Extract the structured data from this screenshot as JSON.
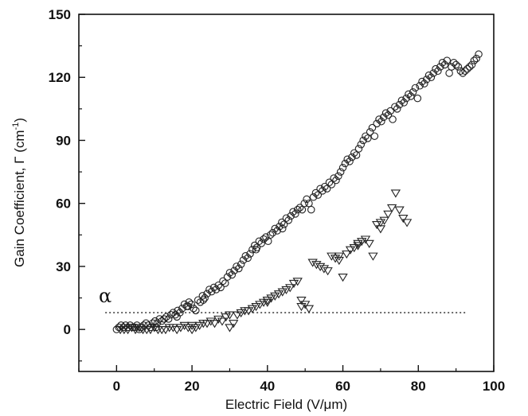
{
  "chart_data": {
    "type": "scatter",
    "xlabel": "Electric Field (V/μm)",
    "ylabel_main": "Gain Coefficient, Γ (cm",
    "ylabel_sup": "-1",
    "ylabel_end": ")",
    "xlim": [
      -10,
      100
    ],
    "ylim": [
      -20,
      150
    ],
    "xticks": [
      0,
      20,
      40,
      60,
      80,
      100
    ],
    "yticks": [
      0,
      30,
      60,
      90,
      120,
      150
    ],
    "grid": false,
    "annotation": {
      "text": "α",
      "x": -3,
      "y": 13
    },
    "threshold_line": {
      "y": 8,
      "x_start": -3,
      "x_end": 93
    },
    "series": [
      {
        "marker": "circle",
        "points": [
          [
            0,
            0
          ],
          [
            0.6,
            1
          ],
          [
            1.2,
            2
          ],
          [
            1.8,
            1
          ],
          [
            2.4,
            2
          ],
          [
            3,
            1
          ],
          [
            3.6,
            2
          ],
          [
            4.2,
            1
          ],
          [
            4.8,
            1
          ],
          [
            5.4,
            2
          ],
          [
            6,
            0
          ],
          [
            6.6,
            1
          ],
          [
            7.2,
            2
          ],
          [
            7.8,
            3
          ],
          [
            8.4,
            2
          ],
          [
            9,
            1
          ],
          [
            9.6,
            3
          ],
          [
            10.2,
            4
          ],
          [
            10.8,
            3
          ],
          [
            11.4,
            5
          ],
          [
            12,
            4
          ],
          [
            12.6,
            5
          ],
          [
            13.2,
            6
          ],
          [
            13.8,
            5
          ],
          [
            14.4,
            7
          ],
          [
            15,
            8
          ],
          [
            15.6,
            7
          ],
          [
            16.2,
            9
          ],
          [
            16.8,
            8
          ],
          [
            17.4,
            10
          ],
          [
            18,
            12
          ],
          [
            18.6,
            11
          ],
          [
            19.2,
            13
          ],
          [
            19.8,
            12
          ],
          [
            20.4,
            10
          ],
          [
            21,
            9
          ],
          [
            21.6,
            14
          ],
          [
            22.2,
            13
          ],
          [
            22.8,
            16
          ],
          [
            23.4,
            15
          ],
          [
            24,
            17
          ],
          [
            24.6,
            19
          ],
          [
            25.2,
            18
          ],
          [
            25.8,
            20
          ],
          [
            26.4,
            19
          ],
          [
            27,
            21
          ],
          [
            27.6,
            20
          ],
          [
            28.2,
            23
          ],
          [
            28.8,
            22
          ],
          [
            29.4,
            25
          ],
          [
            30,
            27
          ],
          [
            30.6,
            26
          ],
          [
            31.2,
            28
          ],
          [
            31.8,
            30
          ],
          [
            32.4,
            29
          ],
          [
            33,
            31
          ],
          [
            33.6,
            33
          ],
          [
            34.2,
            35
          ],
          [
            34.8,
            34
          ],
          [
            35.4,
            36
          ],
          [
            36,
            38
          ],
          [
            36.6,
            40
          ],
          [
            37.2,
            39
          ],
          [
            37.8,
            42
          ],
          [
            38.4,
            41
          ],
          [
            39,
            43
          ],
          [
            39.6,
            44
          ],
          [
            40.2,
            42
          ],
          [
            40.8,
            45
          ],
          [
            41.4,
            46
          ],
          [
            42,
            48
          ],
          [
            42.6,
            47
          ],
          [
            43.2,
            49
          ],
          [
            43.8,
            51
          ],
          [
            44.4,
            50
          ],
          [
            45,
            53
          ],
          [
            45.6,
            52
          ],
          [
            46.2,
            54
          ],
          [
            46.8,
            56
          ],
          [
            47.4,
            55
          ],
          [
            48,
            57
          ],
          [
            48.6,
            58
          ],
          [
            49.2,
            57
          ],
          [
            49.8,
            60
          ],
          [
            50.4,
            62
          ],
          [
            51,
            60
          ],
          [
            51.6,
            57
          ],
          [
            52.2,
            63
          ],
          [
            52.8,
            65
          ],
          [
            53.4,
            64
          ],
          [
            54,
            67
          ],
          [
            54.6,
            66
          ],
          [
            55.2,
            68
          ],
          [
            55.8,
            67
          ],
          [
            56.4,
            70
          ],
          [
            57,
            69
          ],
          [
            57.6,
            72
          ],
          [
            58.2,
            71
          ],
          [
            58.8,
            73
          ],
          [
            59.4,
            75
          ],
          [
            60,
            77
          ],
          [
            60.6,
            79
          ],
          [
            61.2,
            81
          ],
          [
            61.8,
            80
          ],
          [
            62.4,
            82
          ],
          [
            63,
            84
          ],
          [
            63.6,
            83
          ],
          [
            64.2,
            86
          ],
          [
            64.8,
            88
          ],
          [
            65.4,
            90
          ],
          [
            66,
            92
          ],
          [
            66.6,
            91
          ],
          [
            67.2,
            94
          ],
          [
            67.8,
            96
          ],
          [
            68.4,
            92
          ],
          [
            69,
            98
          ],
          [
            69.6,
            100
          ],
          [
            70.2,
            99
          ],
          [
            70.8,
            101
          ],
          [
            71.4,
            103
          ],
          [
            72,
            102
          ],
          [
            72.6,
            104
          ],
          [
            73.2,
            100
          ],
          [
            73.8,
            106
          ],
          [
            74.4,
            105
          ],
          [
            75,
            107
          ],
          [
            75.6,
            109
          ],
          [
            76.2,
            108
          ],
          [
            76.8,
            110
          ],
          [
            77.4,
            112
          ],
          [
            78,
            111
          ],
          [
            78.6,
            113
          ],
          [
            79.2,
            115
          ],
          [
            79.8,
            110
          ],
          [
            80.4,
            116
          ],
          [
            81,
            118
          ],
          [
            81.6,
            117
          ],
          [
            82.2,
            119
          ],
          [
            82.8,
            121
          ],
          [
            83.4,
            120
          ],
          [
            84,
            122
          ],
          [
            84.6,
            124
          ],
          [
            85.2,
            123
          ],
          [
            85.8,
            125
          ],
          [
            86.4,
            127
          ],
          [
            87,
            126
          ],
          [
            87.6,
            128
          ],
          [
            88.2,
            122
          ],
          [
            88.8,
            125
          ],
          [
            89.4,
            127
          ],
          [
            90,
            126
          ],
          [
            90.6,
            125
          ],
          [
            91.2,
            123
          ],
          [
            91.8,
            122
          ],
          [
            92.4,
            123
          ],
          [
            93,
            124
          ],
          [
            93.6,
            125
          ],
          [
            94.2,
            126
          ],
          [
            94.8,
            128
          ],
          [
            95.4,
            129
          ],
          [
            96,
            131
          ],
          [
            10.5,
            1
          ],
          [
            16,
            6
          ],
          [
            19,
            11
          ],
          [
            23,
            14
          ],
          [
            37,
            38
          ],
          [
            44,
            48
          ]
        ]
      },
      {
        "marker": "triangle-down",
        "points": [
          [
            1,
            0
          ],
          [
            2,
            0
          ],
          [
            3,
            0
          ],
          [
            4,
            1
          ],
          [
            5,
            0
          ],
          [
            6,
            1
          ],
          [
            7,
            0
          ],
          [
            8,
            0
          ],
          [
            9,
            0
          ],
          [
            10,
            1
          ],
          [
            11,
            0
          ],
          [
            12,
            0
          ],
          [
            13,
            0
          ],
          [
            14,
            1
          ],
          [
            15,
            1
          ],
          [
            16,
            0
          ],
          [
            17,
            1
          ],
          [
            18,
            2
          ],
          [
            19,
            1
          ],
          [
            20,
            2
          ],
          [
            21,
            1
          ],
          [
            22,
            2
          ],
          [
            23,
            3
          ],
          [
            24,
            3
          ],
          [
            25,
            4
          ],
          [
            26,
            3
          ],
          [
            27,
            5
          ],
          [
            28,
            4
          ],
          [
            29,
            6
          ],
          [
            30,
            7
          ],
          [
            31,
            3
          ],
          [
            32,
            7
          ],
          [
            33,
            8
          ],
          [
            34,
            9
          ],
          [
            35,
            9
          ],
          [
            36,
            10
          ],
          [
            37,
            11
          ],
          [
            38,
            12
          ],
          [
            39,
            13
          ],
          [
            40,
            14
          ],
          [
            41,
            15
          ],
          [
            42,
            16
          ],
          [
            43,
            17
          ],
          [
            44,
            18
          ],
          [
            45,
            19
          ],
          [
            46,
            20
          ],
          [
            47,
            22
          ],
          [
            48,
            23
          ],
          [
            49,
            14
          ],
          [
            50,
            12
          ],
          [
            51,
            10
          ],
          [
            52,
            32
          ],
          [
            53,
            31
          ],
          [
            54,
            30
          ],
          [
            55,
            29
          ],
          [
            56,
            28
          ],
          [
            57,
            35
          ],
          [
            58,
            34
          ],
          [
            59,
            33
          ],
          [
            60,
            25
          ],
          [
            61,
            36
          ],
          [
            62,
            38
          ],
          [
            63,
            39
          ],
          [
            64,
            41
          ],
          [
            65,
            42
          ],
          [
            66,
            43
          ],
          [
            67,
            41
          ],
          [
            68,
            35
          ],
          [
            69,
            50
          ],
          [
            70,
            48
          ],
          [
            71,
            52
          ],
          [
            72,
            55
          ],
          [
            73,
            58
          ],
          [
            74,
            65
          ],
          [
            75,
            57
          ],
          [
            76,
            53
          ],
          [
            77,
            51
          ],
          [
            20,
            0
          ],
          [
            30,
            1
          ],
          [
            40,
            13
          ],
          [
            49,
            11
          ],
          [
            59,
            35
          ],
          [
            64,
            40
          ],
          [
            70,
            51
          ]
        ]
      }
    ]
  }
}
